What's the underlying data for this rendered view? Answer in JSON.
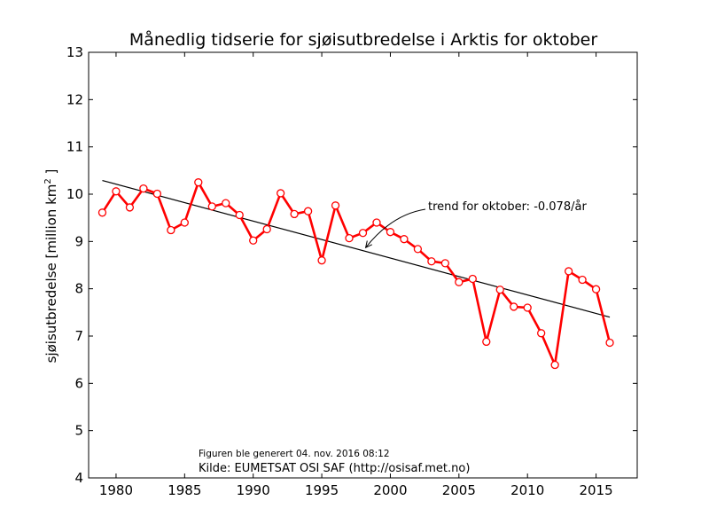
{
  "chart_data": {
    "type": "line",
    "title": "Månedlig tidserie for sjøisutbredelse i Arktis for oktober",
    "ylabel_prefix": "sjøisutbredelse [million km",
    "ylabel_sup": "2",
    "ylabel_suffix": " ]",
    "xlabel": "",
    "xlim": [
      1978,
      2018
    ],
    "ylim": [
      4,
      13
    ],
    "xticks": [
      "1980",
      "1985",
      "1990",
      "1995",
      "2000",
      "2005",
      "2010",
      "2015"
    ],
    "yticks": [
      "4",
      "5",
      "6",
      "7",
      "8",
      "9",
      "10",
      "11",
      "12",
      "13"
    ],
    "grid": false,
    "series": [
      {
        "color": "#ff0000",
        "marker": "open-circle",
        "x": [
          1979,
          1980,
          1981,
          1982,
          1983,
          1984,
          1985,
          1986,
          1987,
          1988,
          1989,
          1990,
          1991,
          1992,
          1993,
          1994,
          1995,
          1996,
          1997,
          1998,
          1999,
          2000,
          2001,
          2002,
          2003,
          2004,
          2005,
          2006,
          2007,
          2008,
          2009,
          2010,
          2011,
          2012,
          2013,
          2014,
          2015,
          2016
        ],
        "y": [
          9.61,
          10.06,
          9.72,
          10.12,
          10.01,
          9.24,
          9.4,
          10.25,
          9.74,
          9.81,
          9.56,
          9.02,
          9.26,
          10.02,
          9.58,
          9.64,
          8.6,
          9.76,
          9.07,
          9.18,
          9.4,
          9.2,
          9.05,
          8.84,
          8.58,
          8.54,
          8.14,
          8.21,
          6.88,
          7.98,
          7.62,
          7.6,
          7.06,
          6.39,
          8.37,
          8.19,
          7.99,
          6.86
        ]
      }
    ],
    "trend": {
      "color": "#000000",
      "x": [
        1979,
        2016
      ],
      "y": [
        10.29,
        7.4
      ]
    },
    "annotation": {
      "text": "trend for oktober: -0.078/år",
      "arrow_to": [
        1998.2,
        8.87
      ]
    },
    "footnotes": {
      "generated": "Figuren ble generert 04. nov. 2016 08:12",
      "source": "Kilde: EUMETSAT OSI SAF (http://osisaf.met.no)"
    }
  }
}
